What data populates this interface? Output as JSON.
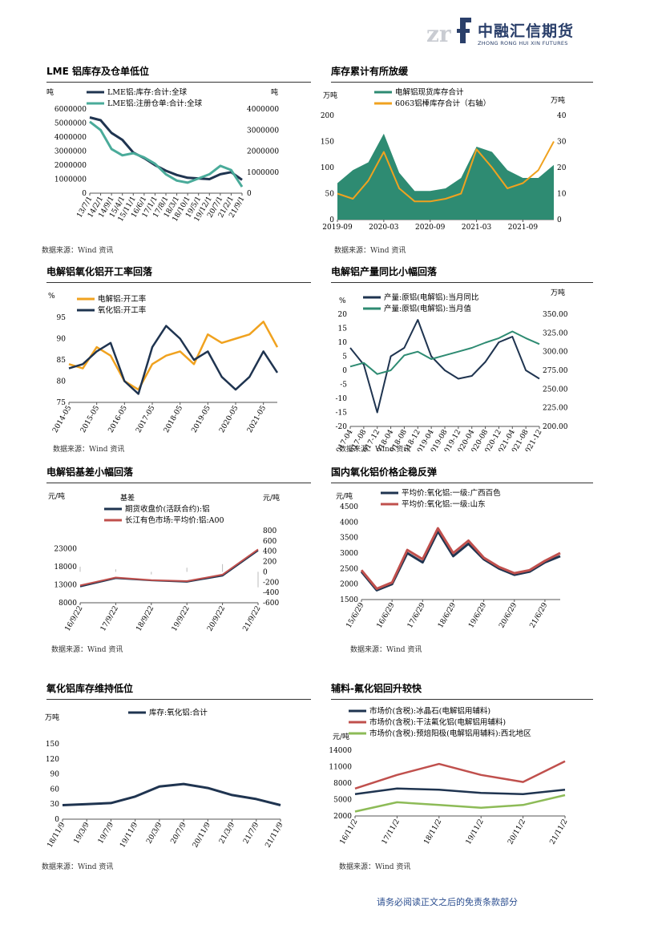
{
  "header": {
    "logo_mark": "zrf",
    "company_cn": "中融汇信期货",
    "company_en": "ZHONG RONG HUI XIN FUTURES"
  },
  "colors": {
    "navy": "#1f3450",
    "teal": "#4aab9a",
    "orange": "#f0a21f",
    "red": "#c0504d",
    "dark_teal": "#2e8b72",
    "green": "#8dbb57",
    "blue_text": "#2a4d8f"
  },
  "footer": {
    "note": "请务必阅读正文之后的免责条款部分"
  },
  "charts": [
    {
      "title": "LME 铝库存及仓单低位",
      "source": "数据来源：Wind 资讯",
      "unit_left": "吨",
      "unit_right": "吨",
      "chart_data": {
        "type": "line",
        "series": [
          {
            "name": "LME铝:库存:合计:全球",
            "axis": "left",
            "color": "#1f3450",
            "x": [
              "13/7/1",
              "14/2/1",
              "14/9/1",
              "15/4/1",
              "15/11/1",
              "16/6/1",
              "17/1/1",
              "17/8/1",
              "18/3/1",
              "18/10/1",
              "19/5/1",
              "19/12/1",
              "20/7/1",
              "21/2/1",
              "21/9/1"
            ],
            "values": [
              5400000,
              5200000,
              4300000,
              3800000,
              2900000,
              2500000,
              2000000,
              1600000,
              1300000,
              1100000,
              1050000,
              1000000,
              1350000,
              1500000,
              950000
            ]
          },
          {
            "name": "LME铝:注册仓单:合计:全球",
            "axis": "right",
            "color": "#4aab9a",
            "x": [
              "13/7/1",
              "14/2/1",
              "14/9/1",
              "15/4/1",
              "15/11/1",
              "16/6/1",
              "17/1/1",
              "17/8/1",
              "18/3/1",
              "18/10/1",
              "19/5/1",
              "19/12/1",
              "20/7/1",
              "21/2/1",
              "21/9/1"
            ],
            "values": [
              3400000,
              3000000,
              2100000,
              1800000,
              1900000,
              1700000,
              1400000,
              900000,
              600000,
              500000,
              700000,
              900000,
              1300000,
              1100000,
              300000
            ]
          }
        ],
        "y_left_ticks": [
          "6000000",
          "5000000",
          "4000000",
          "3000000",
          "2000000",
          "1000000",
          "0"
        ],
        "y_right_ticks": [
          "4000000",
          "3000000",
          "2000000",
          "1000000",
          "0"
        ],
        "x_ticks": [
          "13/7/1",
          "14/2/1",
          "14/9/1",
          "15/4/1",
          "15/11/1",
          "16/6/1",
          "17/1/1",
          "17/8/1",
          "18/3/1",
          "18/10/1",
          "19/5/1",
          "19/12/1",
          "20/7/1",
          "21/2/1",
          "21/9/1"
        ],
        "ylim_left": [
          0,
          6000000
        ],
        "ylim_right": [
          0,
          4000000
        ]
      }
    },
    {
      "title": "库存累计有所放缓",
      "source": "数据来源：Wind 资讯",
      "unit_left": "万吨",
      "unit_right": "万吨",
      "chart_data": {
        "type": "area",
        "series": [
          {
            "name": "电解铝现货库存合计",
            "axis": "left",
            "kind": "area",
            "color": "#2e8b72",
            "x": [
              "2019-09",
              "2019-11",
              "2020-01",
              "2020-03",
              "2020-05",
              "2020-07",
              "2020-09",
              "2020-11",
              "2021-01",
              "2021-03",
              "2021-05",
              "2021-07",
              "2021-09",
              "2021-11",
              "2022-01"
            ],
            "values": [
              70,
              95,
              110,
              165,
              90,
              55,
              55,
              60,
              80,
              140,
              130,
              95,
              80,
              80,
              105
            ]
          },
          {
            "name": "6063铝棒库存合计（右轴）",
            "axis": "right",
            "kind": "line",
            "color": "#f0a21f",
            "x": [
              "2019-09",
              "2019-11",
              "2020-01",
              "2020-03",
              "2020-05",
              "2020-07",
              "2020-09",
              "2020-11",
              "2021-01",
              "2021-03",
              "2021-05",
              "2021-07",
              "2021-09",
              "2021-11",
              "2022-01"
            ],
            "values": [
              10,
              8,
              15,
              26,
              12,
              7,
              7,
              8,
              10,
              27,
              20,
              12,
              14,
              19,
              30
            ]
          }
        ],
        "y_left_ticks": [
          "200",
          "150",
          "100",
          "50",
          "0"
        ],
        "y_right_ticks": [
          "40",
          "30",
          "20",
          "10",
          "0"
        ],
        "x_ticks": [
          "2019-09",
          "2020-03",
          "2020-09",
          "2021-03",
          "2021-09"
        ],
        "ylim_left": [
          0,
          200
        ],
        "ylim_right": [
          0,
          40
        ]
      }
    },
    {
      "title": "电解铝氧化铝开工率回落",
      "source": "数据来源：Wind 资讯",
      "unit_left": "%",
      "chart_data": {
        "type": "line",
        "series": [
          {
            "name": "电解铝:开工率",
            "color": "#f0a21f",
            "x": [
              "2014-05",
              "2014-11",
              "2015-05",
              "2015-11",
              "2016-05",
              "2016-11",
              "2017-05",
              "2017-11",
              "2018-05",
              "2018-11",
              "2019-05",
              "2019-11",
              "2020-05",
              "2020-11",
              "2021-05",
              "2021-11"
            ],
            "values": [
              84,
              83,
              88,
              86,
              80,
              78,
              84,
              86,
              87,
              84,
              91,
              89,
              90,
              91,
              94,
              88
            ]
          },
          {
            "name": "氧化铝:开工率",
            "color": "#1f3450",
            "x": [
              "2014-05",
              "2014-11",
              "2015-05",
              "2015-11",
              "2016-05",
              "2016-11",
              "2017-05",
              "2017-11",
              "2018-05",
              "2018-11",
              "2019-05",
              "2019-11",
              "2020-05",
              "2020-11",
              "2021-05",
              "2021-11"
            ],
            "values": [
              83,
              84,
              87,
              89,
              80,
              77,
              88,
              93,
              90,
              85,
              87,
              81,
              78,
              81,
              87,
              82
            ]
          }
        ],
        "y_ticks": [
          "95",
          "90",
          "85",
          "80",
          "75"
        ],
        "x_ticks": [
          "2014-05",
          "2015-05",
          "2016-05",
          "2017-05",
          "2018-05",
          "2019-05",
          "2020-05",
          "2021-05"
        ],
        "ylim": [
          75,
          95
        ]
      }
    },
    {
      "title": "电解铝产量同比小幅回落",
      "source": "数据来源：Wind 资讯",
      "unit_left": "%",
      "unit_right": "万吨",
      "chart_data": {
        "type": "line",
        "series": [
          {
            "name": "产量:原铝(电解铝):当月同比",
            "axis": "left",
            "color": "#1f3450",
            "x": [
              "2017-04",
              "2017-08",
              "2017-12",
              "2018-04",
              "2018-08",
              "2018-12",
              "2019-04",
              "2019-08",
              "2019-12",
              "2020-04",
              "2020-08",
              "2020-12",
              "2021-04",
              "2021-08",
              "2021-12"
            ],
            "values": [
              8,
              2,
              -15,
              5,
              8,
              18,
              5,
              0,
              -3,
              -2,
              3,
              10,
              12,
              0,
              -3
            ]
          },
          {
            "name": "产量:原铝(电解铝):当月值",
            "axis": "right",
            "color": "#2e8b72",
            "x": [
              "2017-04",
              "2017-08",
              "2017-12",
              "2018-04",
              "2018-08",
              "2018-12",
              "2019-04",
              "2019-08",
              "2019-12",
              "2020-04",
              "2020-08",
              "2020-12",
              "2021-04",
              "2021-08",
              "2021-12"
            ],
            "values": [
              280,
              285,
              270,
              275,
              295,
              300,
              290,
              295,
              300,
              305,
              312,
              318,
              327,
              318,
              310
            ]
          }
        ],
        "y_left_ticks": [
          "20",
          "15",
          "10",
          "5",
          "0",
          "-5",
          "-10",
          "-15",
          "-20"
        ],
        "y_right_ticks": [
          "350.00",
          "325.00",
          "300.00",
          "275.00",
          "250.00",
          "225.00",
          "200.00"
        ],
        "x_ticks": [
          "2017-04",
          "2017-08",
          "2017-12",
          "2018-04",
          "2018-08",
          "2018-12",
          "2019-04",
          "2019-08",
          "2019-12",
          "2020-04",
          "2020-08",
          "2020-12",
          "2021-04",
          "2021-08",
          "2021-12"
        ],
        "ylim_left": [
          -20,
          20
        ],
        "ylim_right": [
          200,
          350
        ]
      }
    },
    {
      "title": "电解铝基差小幅回落",
      "source": "数据来源：Wind 资讯",
      "unit_left": "元/吨",
      "unit_right": "元/吨",
      "legend_extra": "基差",
      "chart_data": {
        "type": "line",
        "series": [
          {
            "name": "期货收盘价(活跃合约):铝",
            "axis": "left",
            "color": "#1f3450",
            "x": [
              "16/9/22",
              "17/9/22",
              "18/9/22",
              "19/9/22",
              "20/9/22",
              "21/9/22"
            ],
            "values": [
              12500,
              14800,
              14200,
              13800,
              15500,
              22500
            ]
          },
          {
            "name": "长江有色市场:平均价:铝:A00",
            "axis": "left",
            "color": "#c0504d",
            "x": [
              "16/9/22",
              "17/9/22",
              "18/9/22",
              "19/9/22",
              "20/9/22",
              "21/9/22"
            ],
            "values": [
              12800,
              15000,
              14300,
              14000,
              15800,
              22800
            ]
          },
          {
            "name": "基差",
            "axis": "right",
            "color": "#bbbbbb",
            "x": [
              "16/9/22",
              "17/9/22",
              "18/9/22",
              "19/9/22",
              "20/9/22",
              "21/9/22"
            ],
            "values": [
              100,
              50,
              -50,
              80,
              150,
              -300
            ]
          }
        ],
        "y_left_ticks": [
          "23000",
          "18000",
          "13000",
          "8000"
        ],
        "y_right_ticks": [
          "800",
          "600",
          "400",
          "200",
          "0",
          "-200",
          "-400",
          "-600"
        ],
        "x_ticks": [
          "16/9/22",
          "17/9/22",
          "18/9/22",
          "19/9/22",
          "20/9/22",
          "21/9/22"
        ],
        "ylim_left": [
          8000,
          28000
        ],
        "ylim_right": [
          -600,
          800
        ]
      }
    },
    {
      "title": "国内氧化铝价格企稳反弹",
      "source": "数据来源：Wind 资讯",
      "unit_left": "元/吨",
      "chart_data": {
        "type": "line",
        "series": [
          {
            "name": "平均价:氧化铝:一级:广西百色",
            "color": "#1f3450",
            "x": [
              "15/6/29",
              "15/12/29",
              "16/6/29",
              "16/12/29",
              "17/6/29",
              "17/12/29",
              "18/6/29",
              "18/12/29",
              "19/6/29",
              "19/12/29",
              "20/6/29",
              "20/12/29",
              "21/6/29",
              "21/12/29"
            ],
            "values": [
              2400,
              1800,
              2000,
              3000,
              2700,
              3700,
              2900,
              3300,
              2800,
              2500,
              2300,
              2400,
              2700,
              2900
            ]
          },
          {
            "name": "平均价:氧化铝:一级:山东",
            "color": "#c0504d",
            "x": [
              "15/6/29",
              "15/12/29",
              "16/6/29",
              "16/12/29",
              "17/6/29",
              "17/12/29",
              "18/6/29",
              "18/12/29",
              "19/6/29",
              "19/12/29",
              "20/6/29",
              "20/12/29",
              "21/6/29",
              "21/12/29"
            ],
            "values": [
              2450,
              1850,
              2050,
              3100,
              2800,
              3800,
              3000,
              3400,
              2850,
              2550,
              2350,
              2450,
              2750,
              3000
            ]
          }
        ],
        "y_ticks": [
          "4500",
          "4000",
          "3500",
          "3000",
          "2500",
          "2000",
          "1500"
        ],
        "x_ticks": [
          "15/6/29",
          "16/6/29",
          "17/6/29",
          "18/6/29",
          "19/6/29",
          "20/6/29",
          "21/6/29"
        ],
        "ylim": [
          1500,
          4500
        ]
      }
    },
    {
      "title": "氧化铝库存维持低位",
      "source": "数据来源：Wind 资讯",
      "unit_left": "万吨",
      "chart_data": {
        "type": "line",
        "series": [
          {
            "name": "库存:氧化铝:合计",
            "color": "#1f3450",
            "x": [
              "18/11/9",
              "19/3/9",
              "19/7/9",
              "19/11/9",
              "20/3/9",
              "20/7/9",
              "20/11/9",
              "21/3/9",
              "21/7/9",
              "21/11/9"
            ],
            "values": [
              28,
              30,
              32,
              45,
              65,
              70,
              62,
              48,
              40,
              28
            ]
          }
        ],
        "y_ticks": [
          "150",
          "120",
          "90",
          "60",
          "30",
          "0"
        ],
        "x_ticks": [
          "18/11/9",
          "19/3/9",
          "19/7/9",
          "19/11/9",
          "20/3/9",
          "20/7/9",
          "20/11/9",
          "21/3/9",
          "21/7/9",
          "21/11/9"
        ],
        "ylim": [
          0,
          150
        ]
      }
    },
    {
      "title": "辅料-氟化铝回升较快",
      "source": "数据来源：Wind 资讯",
      "unit_left": "元/吨",
      "chart_data": {
        "type": "line",
        "series": [
          {
            "name": "市场价(含税):冰晶石(电解铝用辅料)",
            "color": "#1f3450",
            "x": [
              "16/11/2",
              "17/11/2",
              "18/11/2",
              "19/11/2",
              "20/11/2",
              "21/11/2"
            ],
            "values": [
              6000,
              7000,
              6800,
              6200,
              6000,
              6800
            ]
          },
          {
            "name": "市场价(含税):干法氟化铝(电解铝用辅料)",
            "color": "#c0504d",
            "x": [
              "16/11/2",
              "17/11/2",
              "18/11/2",
              "19/11/2",
              "20/11/2",
              "21/11/2"
            ],
            "values": [
              7000,
              9500,
              11500,
              9500,
              8200,
              12000
            ]
          },
          {
            "name": "市场价(含税):预焙阳极(电解铝用辅料):西北地区",
            "color": "#8dbb57",
            "x": [
              "16/11/2",
              "17/11/2",
              "18/11/2",
              "19/11/2",
              "20/11/2",
              "21/11/2"
            ],
            "values": [
              2800,
              4500,
              4000,
              3500,
              4000,
              5800
            ]
          }
        ],
        "y_ticks": [
          "14000",
          "11000",
          "8000",
          "5000",
          "2000"
        ],
        "x_ticks": [
          "16/11/2",
          "17/11/2",
          "18/11/2",
          "19/11/2",
          "20/11/2",
          "21/11/2"
        ],
        "ylim": [
          2000,
          14000
        ]
      }
    }
  ]
}
